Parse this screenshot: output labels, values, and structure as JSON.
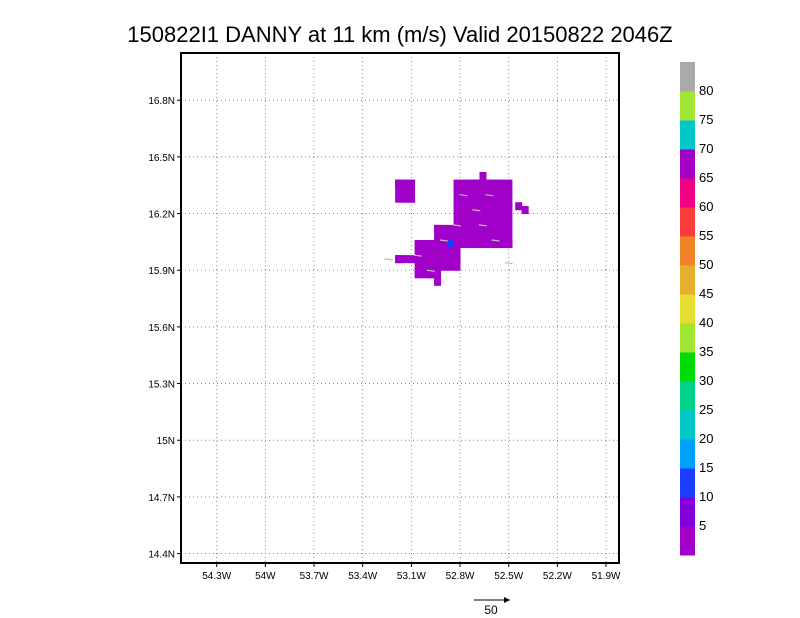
{
  "chart_data": {
    "type": "heatmap",
    "title": "150822I1 DANNY at 11 km (m/s) Valid 20150822 2046Z",
    "xlabel": "",
    "ylabel": "",
    "x_ticks": [
      {
        "value": -54.3,
        "label": "54.3W"
      },
      {
        "value": -54.0,
        "label": "54W"
      },
      {
        "value": -53.7,
        "label": "53.7W"
      },
      {
        "value": -53.4,
        "label": "53.4W"
      },
      {
        "value": -53.1,
        "label": "53.1W"
      },
      {
        "value": -52.8,
        "label": "52.8W"
      },
      {
        "value": -52.5,
        "label": "52.5W"
      },
      {
        "value": -52.2,
        "label": "52.2W"
      },
      {
        "value": -51.9,
        "label": "51.9W"
      }
    ],
    "y_ticks": [
      {
        "value": 14.4,
        "label": "14.4N"
      },
      {
        "value": 14.7,
        "label": "14.7N"
      },
      {
        "value": 15.0,
        "label": "15N"
      },
      {
        "value": 15.3,
        "label": "15.3N"
      },
      {
        "value": 15.6,
        "label": "15.6N"
      },
      {
        "value": 15.9,
        "label": "15.9N"
      },
      {
        "value": 16.2,
        "label": "16.2N"
      },
      {
        "value": 16.5,
        "label": "16.5N"
      },
      {
        "value": 16.8,
        "label": "16.8N"
      }
    ],
    "xlim": [
      -54.52,
      -51.82
    ],
    "ylim": [
      14.35,
      17.05
    ],
    "grid": true,
    "grid_style": "dotted",
    "cell_size_deg": 0.04,
    "colorbar": {
      "labels": [
        "5",
        "10",
        "15",
        "20",
        "25",
        "30",
        "35",
        "40",
        "45",
        "50",
        "55",
        "60",
        "65",
        "70",
        "75",
        "80"
      ],
      "colors": [
        "#a000c8",
        "#8200dc",
        "#1e3cff",
        "#00a0ff",
        "#00c8c8",
        "#00d28c",
        "#00dc00",
        "#a0e632",
        "#e6dc32",
        "#e6af2d",
        "#f08228",
        "#fa3c3c",
        "#f00082",
        "#a000c8",
        "#00c8c8",
        "#a0e632",
        "#aaaaaa"
      ]
    },
    "cells": [
      {
        "lon": -52.68,
        "lat": 16.38,
        "value": 3
      },
      {
        "lon": -53.2,
        "lat": 16.34,
        "value": 3
      },
      {
        "lon": -53.16,
        "lat": 16.3,
        "value": 3
      },
      {
        "lon": -52.72,
        "lat": 16.34,
        "value": 3
      },
      {
        "lon": -52.64,
        "lat": 16.3,
        "value": 3
      },
      {
        "lon": -52.84,
        "lat": 16.22,
        "value": 3
      },
      {
        "lon": -52.96,
        "lat": 16.1,
        "value": 3
      },
      {
        "lon": -52.88,
        "lat": 16.02,
        "value": 12
      },
      {
        "lon": -53.2,
        "lat": 15.94,
        "value": 3
      },
      {
        "lon": -53.0,
        "lat": 15.86,
        "value": 3
      },
      {
        "lon": -52.96,
        "lat": 15.82,
        "value": 3
      },
      {
        "lon": -52.52,
        "lat": 16.02,
        "value": 3
      },
      {
        "lon": -52.46,
        "lat": 16.22,
        "value": 3
      },
      {
        "lon": -52.42,
        "lat": 16.2,
        "value": 3
      }
    ],
    "vectors": [
      {
        "lon": -52.78,
        "lat": 16.3,
        "u": 1,
        "v": 0
      },
      {
        "lon": -52.62,
        "lat": 16.3,
        "u": 1,
        "v": 0
      },
      {
        "lon": -52.7,
        "lat": 16.22,
        "u": 1,
        "v": 0
      },
      {
        "lon": -52.82,
        "lat": 16.14,
        "u": 1,
        "v": 0
      },
      {
        "lon": -52.66,
        "lat": 16.14,
        "u": 1,
        "v": 0
      },
      {
        "lon": -52.9,
        "lat": 16.06,
        "u": 1,
        "v": 0
      },
      {
        "lon": -52.58,
        "lat": 16.06,
        "u": 1,
        "v": 0
      },
      {
        "lon": -53.06,
        "lat": 15.98,
        "u": 1,
        "v": 0
      },
      {
        "lon": -53.24,
        "lat": 15.96,
        "u": 1,
        "v": 0
      },
      {
        "lon": -52.5,
        "lat": 15.94,
        "u": 1,
        "v": 0
      },
      {
        "lon": -52.98,
        "lat": 15.9,
        "u": 1,
        "v": 0
      }
    ],
    "reference_vector": {
      "label": "50",
      "value": 50
    }
  }
}
